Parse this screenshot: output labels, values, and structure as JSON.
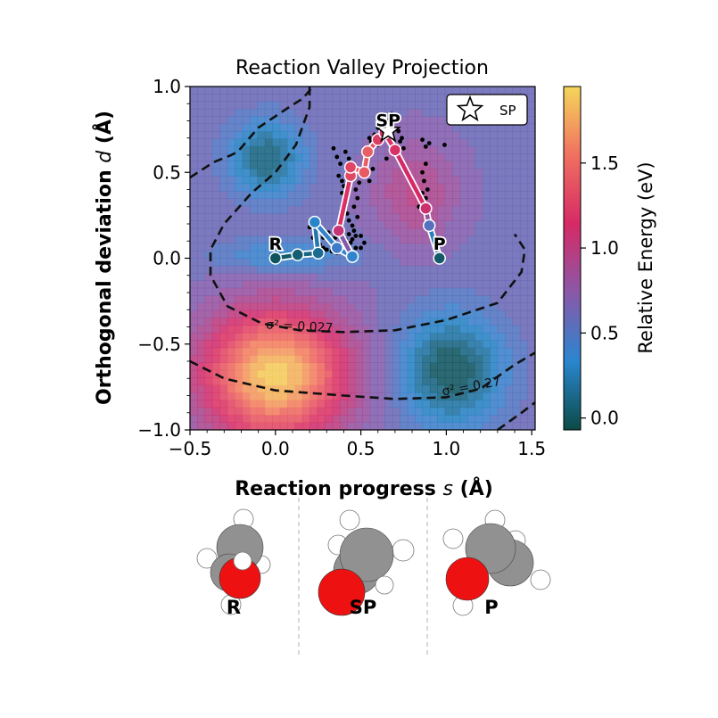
{
  "chart_data": {
    "type": "contour",
    "title": "Reaction Valley Projection",
    "xlabel_prefix": "Reaction progress ",
    "xlabel_var": "s",
    "xlabel_unit": " (Å)",
    "ylabel_prefix": "Orthogonal deviation ",
    "ylabel_var": "d",
    "ylabel_unit": " (Å)",
    "xlim": [
      -0.5,
      1.52
    ],
    "ylim": [
      -1.0,
      1.0
    ],
    "xticks": [
      -0.5,
      0.0,
      0.5,
      1.0,
      1.5
    ],
    "xtick_labels": [
      "−0.5",
      "0.0",
      "0.5",
      "1.0",
      "1.5"
    ],
    "yticks": [
      -1.0,
      -0.5,
      0.0,
      0.5,
      1.0
    ],
    "ytick_labels": [
      "−1.0",
      "−0.5",
      "0.0",
      "0.5",
      "1.0"
    ],
    "colorbar": {
      "label": "Relative Energy (eV)",
      "range": [
        -0.07,
        1.95
      ],
      "ticks": [
        0.0,
        0.5,
        1.0,
        1.5
      ],
      "tick_labels": [
        "0.0",
        "0.5",
        "1.0",
        "1.5"
      ],
      "colors": [
        "#0b4a46",
        "#2a86cf",
        "#8a58a8",
        "#d62a66",
        "#f07060",
        "#f4d65a"
      ]
    },
    "energy_wells": [
      {
        "center": [
          -0.05,
          0.58
        ],
        "energy": 0.05
      },
      {
        "center": [
          0.05,
          0.01
        ],
        "energy": 0.3
      },
      {
        "center": [
          1.03,
          -0.65
        ],
        "energy": -0.05
      },
      {
        "center": [
          0.0,
          -0.68
        ],
        "energy": 1.9
      }
    ],
    "path": {
      "s": [
        0.0,
        0.13,
        0.25,
        0.23,
        0.36,
        0.45,
        0.37,
        0.44,
        0.44,
        0.52,
        0.54,
        0.6,
        0.64,
        0.7,
        0.88,
        0.9,
        0.96
      ],
      "d": [
        0.0,
        0.02,
        0.03,
        0.21,
        0.06,
        0.01,
        0.16,
        0.48,
        0.53,
        0.5,
        0.62,
        0.69,
        0.73,
        0.63,
        0.29,
        0.19,
        0.0
      ],
      "energy": [
        0.0,
        0.06,
        0.15,
        0.32,
        0.42,
        0.36,
        1.05,
        1.32,
        1.3,
        1.42,
        1.45,
        1.25,
        1.22,
        1.18,
        1.08,
        0.52,
        0.03
      ]
    },
    "saddle_point": {
      "s": 0.66,
      "d": 0.74,
      "label": "SP"
    },
    "point_labels": [
      {
        "text": "R",
        "s": 0.0,
        "d": 0.09
      },
      {
        "text": "SP",
        "s": 0.66,
        "d": 0.81
      },
      {
        "text": "P",
        "s": 0.96,
        "d": 0.09
      }
    ],
    "sample_points": [
      [
        0.34,
        0.64
      ],
      [
        0.36,
        0.59
      ],
      [
        0.38,
        0.55
      ],
      [
        0.37,
        0.48
      ],
      [
        0.39,
        0.45
      ],
      [
        0.4,
        0.42
      ],
      [
        0.39,
        0.38
      ],
      [
        0.4,
        0.34
      ],
      [
        0.41,
        0.3
      ],
      [
        0.42,
        0.26
      ],
      [
        0.43,
        0.22
      ],
      [
        0.45,
        0.19
      ],
      [
        0.46,
        0.16
      ],
      [
        0.47,
        0.13
      ],
      [
        0.45,
        0.11
      ],
      [
        0.44,
        0.09
      ],
      [
        0.42,
        0.07
      ],
      [
        0.4,
        0.05
      ],
      [
        0.38,
        0.04
      ],
      [
        0.36,
        0.03
      ],
      [
        0.33,
        0.04
      ],
      [
        0.3,
        0.05
      ],
      [
        0.28,
        0.06
      ],
      [
        0.26,
        0.08
      ],
      [
        0.24,
        0.1
      ],
      [
        0.22,
        0.12
      ],
      [
        0.2,
        0.18
      ],
      [
        0.22,
        0.2
      ],
      [
        0.25,
        0.17
      ],
      [
        0.48,
        0.24
      ],
      [
        0.46,
        0.3
      ],
      [
        0.48,
        0.35
      ],
      [
        0.47,
        0.4
      ],
      [
        0.49,
        0.44
      ],
      [
        0.5,
        0.5
      ],
      [
        0.52,
        0.55
      ],
      [
        0.53,
        0.6
      ],
      [
        0.55,
        0.64
      ],
      [
        0.56,
        0.68
      ],
      [
        0.58,
        0.72
      ],
      [
        0.6,
        0.76
      ],
      [
        0.62,
        0.78
      ],
      [
        0.65,
        0.8
      ],
      [
        0.68,
        0.84
      ],
      [
        0.7,
        0.8
      ],
      [
        0.72,
        0.74
      ],
      [
        0.73,
        0.68
      ],
      [
        0.75,
        0.64
      ],
      [
        0.74,
        0.7
      ],
      [
        0.86,
        0.69
      ],
      [
        0.88,
        0.65
      ],
      [
        0.9,
        0.67
      ],
      [
        0.99,
        0.66
      ],
      [
        0.88,
        0.55
      ],
      [
        0.86,
        0.5
      ],
      [
        0.87,
        0.45
      ],
      [
        0.89,
        0.4
      ],
      [
        0.88,
        0.35
      ],
      [
        0.86,
        0.38
      ],
      [
        0.84,
        0.3
      ],
      [
        0.5,
        0.13
      ],
      [
        0.52,
        0.09
      ],
      [
        0.5,
        0.06
      ],
      [
        0.47,
        0.06
      ],
      [
        0.43,
        0.04
      ],
      [
        0.39,
        0.09
      ],
      [
        0.41,
        0.11
      ],
      [
        0.43,
        0.14
      ],
      [
        0.35,
        0.12
      ],
      [
        0.32,
        0.1
      ],
      [
        0.28,
        0.12
      ],
      [
        0.31,
        0.15
      ],
      [
        0.55,
        0.45
      ],
      [
        0.57,
        0.52
      ],
      [
        0.45,
        0.52
      ],
      [
        0.43,
        0.58
      ],
      [
        0.41,
        0.62
      ],
      [
        0.55,
        0.7
      ],
      [
        0.6,
        0.66
      ],
      [
        0.65,
        0.58
      ]
    ],
    "contour_labels": [
      {
        "text": "σ² = 0.027",
        "s": 0.14,
        "d": -0.42
      },
      {
        "text": "σ² = 0.27",
        "s": 1.15,
        "d": -0.77
      }
    ],
    "legend": {
      "label": "SP",
      "position": "upper right"
    }
  },
  "molecules": [
    {
      "label": "R"
    },
    {
      "label": "SP"
    },
    {
      "label": "P"
    }
  ]
}
